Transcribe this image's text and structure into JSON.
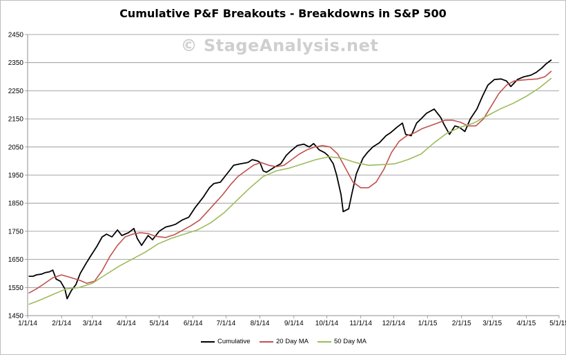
{
  "chart_data": {
    "type": "line",
    "title": "Cumulative P&F Breakouts - Breakdowns in S&P 500",
    "watermark": "© StageAnalysis.net",
    "xlabel": "",
    "ylabel": "",
    "x_ticks": [
      "1/1/14",
      "2/1/14",
      "3/1/14",
      "4/1/14",
      "5/1/14",
      "6/1/14",
      "7/1/14",
      "8/1/14",
      "9/1/14",
      "10/1/14",
      "11/1/14",
      "12/1/14",
      "1/1/15",
      "2/1/15",
      "3/1/15",
      "4/1/15",
      "5/1/15"
    ],
    "y_ticks": [
      1450,
      1550,
      1650,
      1750,
      1850,
      1950,
      2050,
      2150,
      2250,
      2350,
      2450
    ],
    "ylim": [
      1450,
      2450
    ],
    "xlim": [
      "2014-01-01",
      "2015-05-01"
    ],
    "grid": true,
    "legend_position": "bottom",
    "series": [
      {
        "name": "Cumulative",
        "color": "#000000",
        "points": [
          [
            "2014-01-02",
            1590
          ],
          [
            "2014-01-06",
            1590
          ],
          [
            "2014-01-09",
            1595
          ],
          [
            "2014-01-14",
            1598
          ],
          [
            "2014-01-17",
            1603
          ],
          [
            "2014-01-21",
            1606
          ],
          [
            "2014-01-24",
            1612
          ],
          [
            "2014-01-27",
            1580
          ],
          [
            "2014-01-31",
            1572
          ],
          [
            "2014-02-04",
            1545
          ],
          [
            "2014-02-06",
            1510
          ],
          [
            "2014-02-10",
            1540
          ],
          [
            "2014-02-14",
            1560
          ],
          [
            "2014-02-18",
            1600
          ],
          [
            "2014-02-24",
            1640
          ],
          [
            "2014-02-28",
            1665
          ],
          [
            "2014-03-05",
            1695
          ],
          [
            "2014-03-10",
            1730
          ],
          [
            "2014-03-14",
            1740
          ],
          [
            "2014-03-19",
            1730
          ],
          [
            "2014-03-24",
            1755
          ],
          [
            "2014-03-28",
            1735
          ],
          [
            "2014-04-03",
            1745
          ],
          [
            "2014-04-08",
            1760
          ],
          [
            "2014-04-11",
            1725
          ],
          [
            "2014-04-15",
            1700
          ],
          [
            "2014-04-21",
            1735
          ],
          [
            "2014-04-25",
            1720
          ],
          [
            "2014-05-01",
            1750
          ],
          [
            "2014-05-07",
            1765
          ],
          [
            "2014-05-12",
            1770
          ],
          [
            "2014-05-16",
            1775
          ],
          [
            "2014-05-22",
            1790
          ],
          [
            "2014-05-28",
            1800
          ],
          [
            "2014-06-03",
            1835
          ],
          [
            "2014-06-10",
            1870
          ],
          [
            "2014-06-16",
            1905
          ],
          [
            "2014-06-20",
            1920
          ],
          [
            "2014-06-26",
            1925
          ],
          [
            "2014-07-01",
            1950
          ],
          [
            "2014-07-08",
            1985
          ],
          [
            "2014-07-14",
            1990
          ],
          [
            "2014-07-21",
            1995
          ],
          [
            "2014-07-25",
            2005
          ],
          [
            "2014-07-30",
            2000
          ],
          [
            "2014-08-01",
            1995
          ],
          [
            "2014-08-04",
            1965
          ],
          [
            "2014-08-07",
            1960
          ],
          [
            "2014-08-11",
            1970
          ],
          [
            "2014-08-15",
            1980
          ],
          [
            "2014-08-20",
            1990
          ],
          [
            "2014-08-25",
            2020
          ],
          [
            "2014-08-29",
            2035
          ],
          [
            "2014-09-04",
            2055
          ],
          [
            "2014-09-10",
            2060
          ],
          [
            "2014-09-15",
            2050
          ],
          [
            "2014-09-19",
            2062
          ],
          [
            "2014-09-24",
            2040
          ],
          [
            "2014-09-29",
            2030
          ],
          [
            "2014-10-02",
            2020
          ],
          [
            "2014-10-07",
            1990
          ],
          [
            "2014-10-10",
            1950
          ],
          [
            "2014-10-14",
            1880
          ],
          [
            "2014-10-16",
            1820
          ],
          [
            "2014-10-21",
            1830
          ],
          [
            "2014-10-24",
            1885
          ],
          [
            "2014-10-28",
            1955
          ],
          [
            "2014-11-03",
            2010
          ],
          [
            "2014-11-07",
            2030
          ],
          [
            "2014-11-12",
            2050
          ],
          [
            "2014-11-18",
            2065
          ],
          [
            "2014-11-24",
            2090
          ],
          [
            "2014-11-28",
            2100
          ],
          [
            "2014-12-04",
            2120
          ],
          [
            "2014-12-09",
            2135
          ],
          [
            "2014-12-12",
            2095
          ],
          [
            "2014-12-17",
            2090
          ],
          [
            "2014-12-22",
            2135
          ],
          [
            "2014-12-26",
            2150
          ],
          [
            "2014-12-31",
            2170
          ],
          [
            "2015-01-07",
            2185
          ],
          [
            "2015-01-13",
            2155
          ],
          [
            "2015-01-16",
            2130
          ],
          [
            "2015-01-21",
            2095
          ],
          [
            "2015-01-26",
            2125
          ],
          [
            "2015-01-30",
            2120
          ],
          [
            "2015-02-04",
            2105
          ],
          [
            "2015-02-09",
            2150
          ],
          [
            "2015-02-15",
            2185
          ],
          [
            "2015-02-20",
            2230
          ],
          [
            "2015-02-25",
            2270
          ],
          [
            "2015-03-03",
            2290
          ],
          [
            "2015-03-09",
            2292
          ],
          [
            "2015-03-14",
            2285
          ],
          [
            "2015-03-18",
            2265
          ],
          [
            "2015-03-24",
            2290
          ],
          [
            "2015-03-30",
            2300
          ],
          [
            "2015-04-05",
            2305
          ],
          [
            "2015-04-10",
            2315
          ],
          [
            "2015-04-15",
            2330
          ],
          [
            "2015-04-19",
            2345
          ],
          [
            "2015-04-24",
            2360
          ]
        ]
      },
      {
        "name": "20 Day MA",
        "color": "#c0504d",
        "points": [
          [
            "2014-01-02",
            1530
          ],
          [
            "2014-01-09",
            1545
          ],
          [
            "2014-01-16",
            1563
          ],
          [
            "2014-01-24",
            1585
          ],
          [
            "2014-02-01",
            1595
          ],
          [
            "2014-02-10",
            1585
          ],
          [
            "2014-02-18",
            1575
          ],
          [
            "2014-02-24",
            1565
          ],
          [
            "2014-03-03",
            1572
          ],
          [
            "2014-03-10",
            1610
          ],
          [
            "2014-03-17",
            1660
          ],
          [
            "2014-03-24",
            1700
          ],
          [
            "2014-03-31",
            1730
          ],
          [
            "2014-04-07",
            1740
          ],
          [
            "2014-04-14",
            1745
          ],
          [
            "2014-04-21",
            1742
          ],
          [
            "2014-04-28",
            1732
          ],
          [
            "2014-05-07",
            1728
          ],
          [
            "2014-05-15",
            1738
          ],
          [
            "2014-05-23",
            1755
          ],
          [
            "2014-05-30",
            1770
          ],
          [
            "2014-06-07",
            1790
          ],
          [
            "2014-06-14",
            1820
          ],
          [
            "2014-06-21",
            1850
          ],
          [
            "2014-06-28",
            1880
          ],
          [
            "2014-07-05",
            1915
          ],
          [
            "2014-07-12",
            1945
          ],
          [
            "2014-07-19",
            1965
          ],
          [
            "2014-07-26",
            1985
          ],
          [
            "2014-08-02",
            1995
          ],
          [
            "2014-08-09",
            1985
          ],
          [
            "2014-08-16",
            1980
          ],
          [
            "2014-08-23",
            1985
          ],
          [
            "2014-08-30",
            2005
          ],
          [
            "2014-09-06",
            2025
          ],
          [
            "2014-09-13",
            2040
          ],
          [
            "2014-09-20",
            2050
          ],
          [
            "2014-09-27",
            2055
          ],
          [
            "2014-10-04",
            2050
          ],
          [
            "2014-10-11",
            2025
          ],
          [
            "2014-10-18",
            1975
          ],
          [
            "2014-10-25",
            1925
          ],
          [
            "2014-11-01",
            1905
          ],
          [
            "2014-11-08",
            1905
          ],
          [
            "2014-11-15",
            1925
          ],
          [
            "2014-11-22",
            1970
          ],
          [
            "2014-11-29",
            2030
          ],
          [
            "2014-12-06",
            2070
          ],
          [
            "2014-12-13",
            2090
          ],
          [
            "2014-12-20",
            2100
          ],
          [
            "2014-12-27",
            2115
          ],
          [
            "2015-01-03",
            2125
          ],
          [
            "2015-01-10",
            2135
          ],
          [
            "2015-01-17",
            2145
          ],
          [
            "2015-01-24",
            2145
          ],
          [
            "2015-01-31",
            2138
          ],
          [
            "2015-02-07",
            2125
          ],
          [
            "2015-02-14",
            2125
          ],
          [
            "2015-02-21",
            2150
          ],
          [
            "2015-02-28",
            2195
          ],
          [
            "2015-03-07",
            2240
          ],
          [
            "2015-03-14",
            2270
          ],
          [
            "2015-03-21",
            2285
          ],
          [
            "2015-03-28",
            2288
          ],
          [
            "2015-04-04",
            2290
          ],
          [
            "2015-04-11",
            2292
          ],
          [
            "2015-04-18",
            2300
          ],
          [
            "2015-04-24",
            2320
          ]
        ]
      },
      {
        "name": "50 Day MA",
        "color": "#9bbb59",
        "points": [
          [
            "2014-01-02",
            1490
          ],
          [
            "2014-01-12",
            1505
          ],
          [
            "2014-01-24",
            1525
          ],
          [
            "2014-02-05",
            1545
          ],
          [
            "2014-02-17",
            1550
          ],
          [
            "2014-03-01",
            1565
          ],
          [
            "2014-03-13",
            1595
          ],
          [
            "2014-03-25",
            1625
          ],
          [
            "2014-04-06",
            1650
          ],
          [
            "2014-04-18",
            1675
          ],
          [
            "2014-04-30",
            1705
          ],
          [
            "2014-05-12",
            1725
          ],
          [
            "2014-05-24",
            1740
          ],
          [
            "2014-06-05",
            1755
          ],
          [
            "2014-06-17",
            1780
          ],
          [
            "2014-06-29",
            1815
          ],
          [
            "2014-07-11",
            1860
          ],
          [
            "2014-07-23",
            1905
          ],
          [
            "2014-08-04",
            1945
          ],
          [
            "2014-08-16",
            1965
          ],
          [
            "2014-08-28",
            1975
          ],
          [
            "2014-09-09",
            1990
          ],
          [
            "2014-09-21",
            2005
          ],
          [
            "2014-10-03",
            2015
          ],
          [
            "2014-10-15",
            2010
          ],
          [
            "2014-10-27",
            1995
          ],
          [
            "2014-11-08",
            1985
          ],
          [
            "2014-11-20",
            1987
          ],
          [
            "2014-12-02",
            1990
          ],
          [
            "2014-12-14",
            2005
          ],
          [
            "2014-12-26",
            2025
          ],
          [
            "2015-01-07",
            2065
          ],
          [
            "2015-01-19",
            2100
          ],
          [
            "2015-01-31",
            2120
          ],
          [
            "2015-02-12",
            2135
          ],
          [
            "2015-02-24",
            2160
          ],
          [
            "2015-03-08",
            2185
          ],
          [
            "2015-03-20",
            2205
          ],
          [
            "2015-04-01",
            2230
          ],
          [
            "2015-04-13",
            2260
          ],
          [
            "2015-04-24",
            2295
          ]
        ]
      }
    ]
  }
}
